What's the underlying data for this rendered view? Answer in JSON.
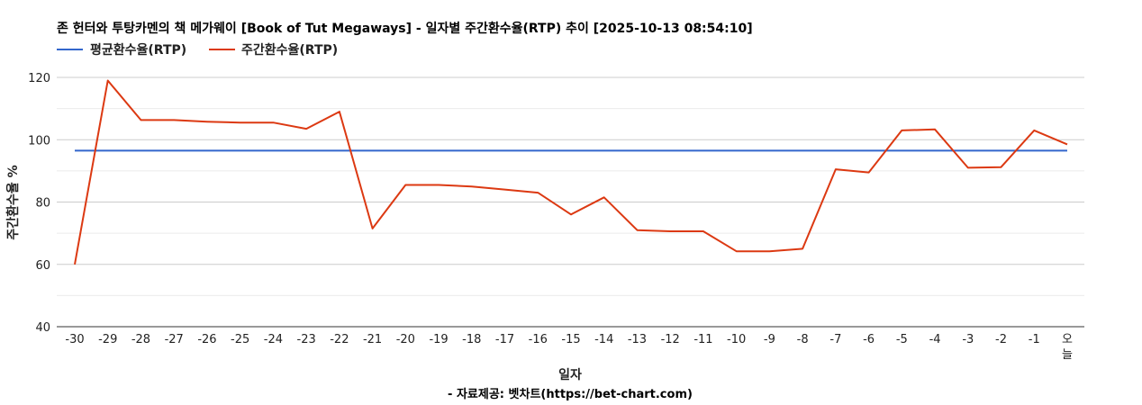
{
  "chart_data": {
    "type": "line",
    "title": "존 헌터와 투탕카멘의 책 메가웨이 [Book of Tut Megaways] - 일자별 주간환수율(RTP) 추이 [2025-10-13 08:54:10]",
    "xlabel": "일자",
    "ylabel": "주간환수율 %",
    "source": "- 자료제공: 벳차트(https://bet-chart.com)",
    "ylim": [
      40,
      120
    ],
    "yticks": [
      "40",
      "60",
      "80",
      "100",
      "120"
    ],
    "grid": true,
    "legend_position": "top-left",
    "categories": [
      "-30",
      "-29",
      "-28",
      "-27",
      "-26",
      "-25",
      "-24",
      "-23",
      "-22",
      "-21",
      "-20",
      "-19",
      "-18",
      "-17",
      "-16",
      "-15",
      "-14",
      "-13",
      "-12",
      "-11",
      "-10",
      "-9",
      "-8",
      "-7",
      "-6",
      "-5",
      "-4",
      "-3",
      "-2",
      "-1",
      "오늘"
    ],
    "series": [
      {
        "name": "평균환수율(RTP)",
        "color": "#3366cc",
        "values": [
          96.5,
          96.5,
          96.5,
          96.5,
          96.5,
          96.5,
          96.5,
          96.5,
          96.5,
          96.5,
          96.5,
          96.5,
          96.5,
          96.5,
          96.5,
          96.5,
          96.5,
          96.5,
          96.5,
          96.5,
          96.5,
          96.5,
          96.5,
          96.5,
          96.5,
          96.5,
          96.5,
          96.5,
          96.5,
          96.5,
          96.5
        ]
      },
      {
        "name": "주간환수율(RTP)",
        "color": "#dc3912",
        "values": [
          60,
          119,
          106.3,
          106.3,
          105.8,
          105.5,
          105.5,
          103.5,
          109,
          71.5,
          85.5,
          85.5,
          85,
          84,
          83,
          76,
          81.5,
          71,
          70.6,
          70.6,
          64.2,
          64.2,
          65,
          90.5,
          89.5,
          103,
          103.3,
          91,
          91.2,
          103,
          98.5
        ]
      }
    ]
  }
}
